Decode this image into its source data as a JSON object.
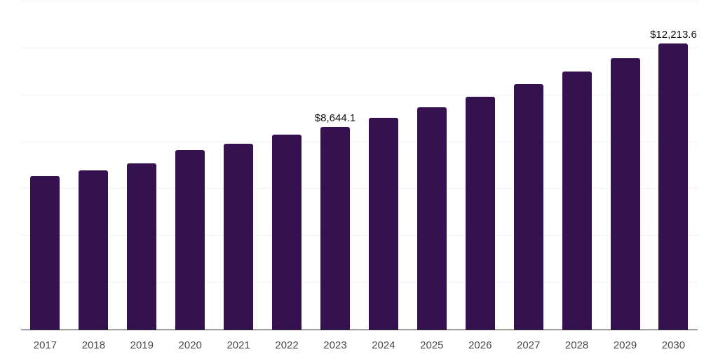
{
  "chart_data": {
    "type": "bar",
    "title": "",
    "xlabel": "",
    "ylabel": "",
    "categories": [
      "2017",
      "2018",
      "2019",
      "2020",
      "2021",
      "2022",
      "2023",
      "2024",
      "2025",
      "2026",
      "2027",
      "2028",
      "2029",
      "2030"
    ],
    "values": [
      6550,
      6800,
      7080,
      7650,
      7940,
      8320,
      8644.1,
      9040,
      9490,
      9930,
      10460,
      11000,
      11590,
      12213.6
    ],
    "ylim": [
      0,
      14000
    ],
    "gridline_step": 2000,
    "grid": "horizontal-only",
    "legend": "none",
    "y_axis_labels_visible": false,
    "annotations": [
      {
        "category": "2023",
        "text": "$8,644.1"
      },
      {
        "category": "2030",
        "text": "$12,213.6"
      }
    ],
    "colors": {
      "bar": "#36114F",
      "axis_line": "#2E2E2E",
      "gridline": "#F1F1F1",
      "tick_label": "#4A4A4A",
      "annotation_text": "#111111",
      "background": "#FFFFFF"
    }
  }
}
